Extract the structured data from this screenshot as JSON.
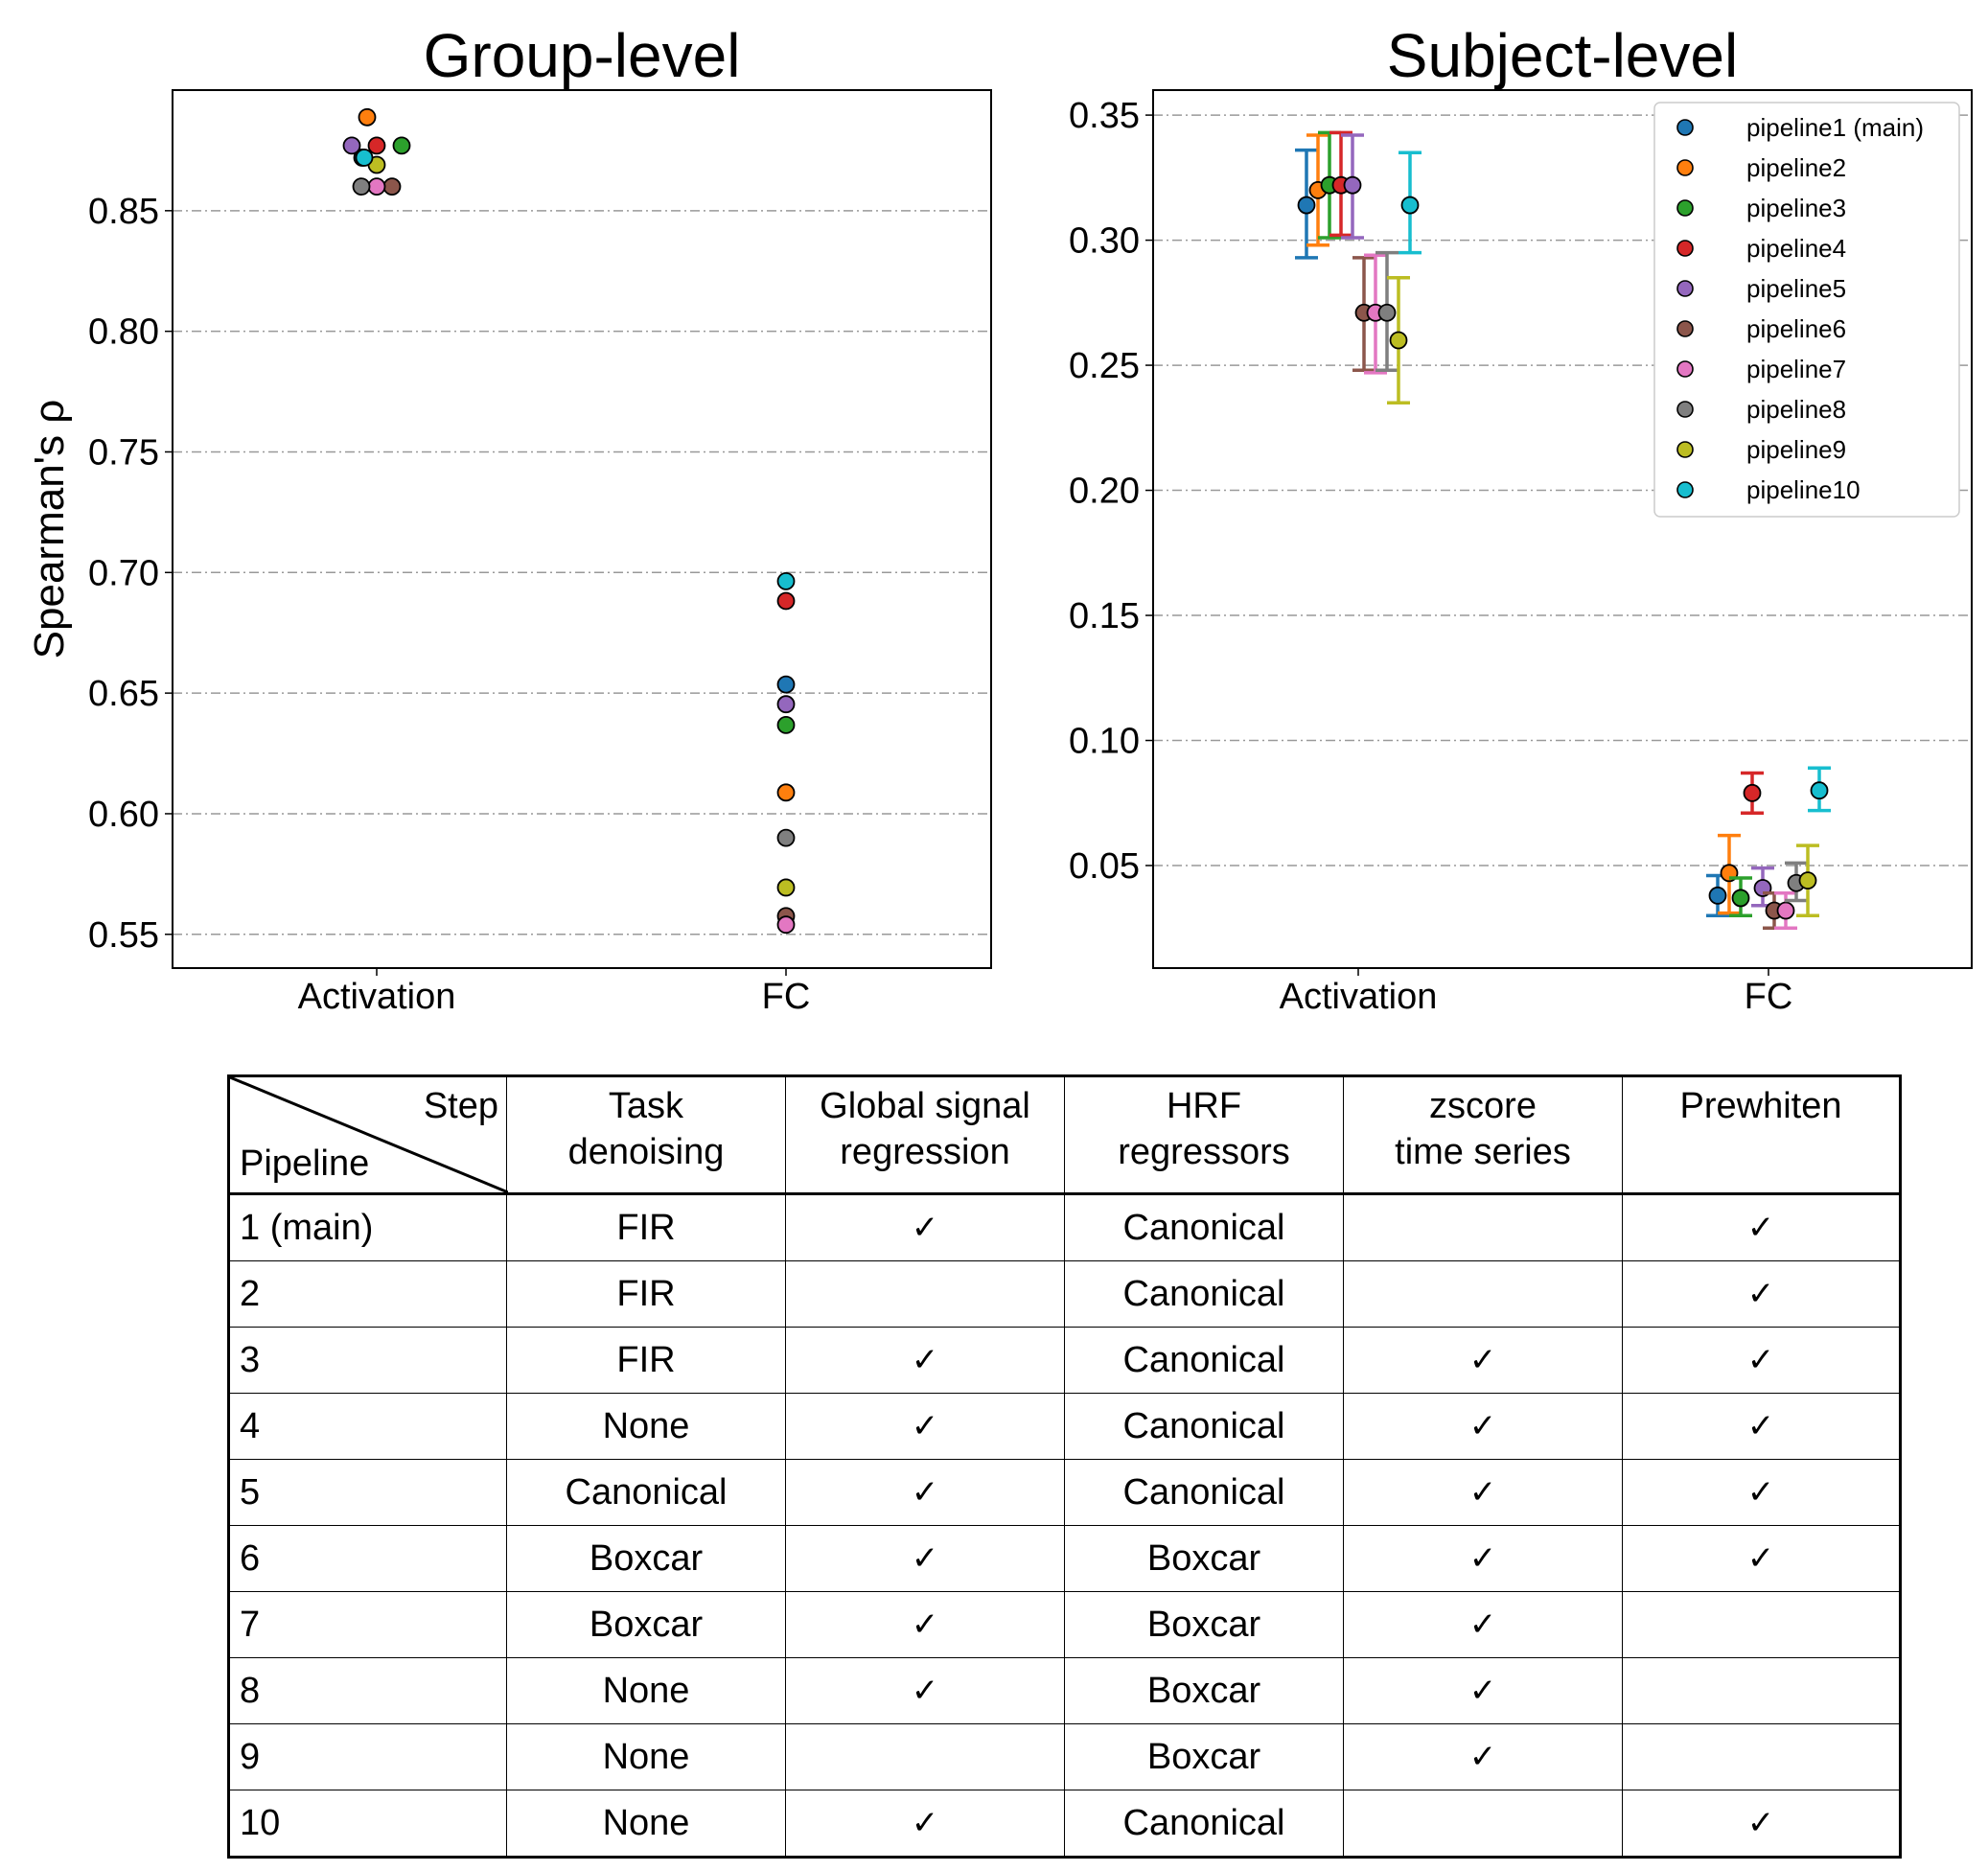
{
  "chart_data": [
    {
      "type": "scatter",
      "title": "Group-level",
      "xlabel": "",
      "ylabel": "Spearman's ρ",
      "categories": [
        "Activation",
        "FC"
      ],
      "ylim": [
        0.536,
        0.9
      ],
      "yticks": [
        "0.55",
        "0.60",
        "0.65",
        "0.70",
        "0.75",
        "0.80",
        "0.85"
      ],
      "grid": "horizontal dash-dot",
      "series": [
        {
          "color": "#1f77b4",
          "values": [
            0.872,
            0.652
          ]
        },
        {
          "color": "#ff7f0e",
          "values": [
            0.882,
            0.608
          ]
        },
        {
          "color": "#2ca02c",
          "values": [
            0.877,
            0.636
          ]
        },
        {
          "color": "#d62728",
          "values": [
            0.877,
            0.687
          ]
        },
        {
          "color": "#9467bd",
          "values": [
            0.877,
            0.645
          ]
        },
        {
          "color": "#8c564b",
          "values": [
            0.86,
            0.552
          ]
        },
        {
          "color": "#e377c2",
          "values": [
            0.86,
            0.554
          ]
        },
        {
          "color": "#7f7f7f",
          "values": [
            0.86,
            0.59
          ]
        },
        {
          "color": "#bcbd22",
          "values": [
            0.869,
            0.569
          ]
        },
        {
          "color": "#17becf",
          "values": [
            0.872,
            0.694
          ]
        }
      ]
    },
    {
      "type": "scatter",
      "title": "Subject-level",
      "xlabel": "",
      "ylabel": "",
      "categories": [
        "Activation",
        "FC"
      ],
      "ylim": [
        0.009,
        0.36
      ],
      "yticks": [
        "0.05",
        "0.10",
        "0.15",
        "0.20",
        "0.25",
        "0.30",
        "0.35"
      ],
      "grid": "horizontal dash-dot",
      "legend_position": "top-right",
      "series": [
        {
          "name": "pipeline1 (main)",
          "color": "#1f77b4",
          "values": [
            0.314,
            0.038
          ],
          "err_low": [
            0.293,
            0.03
          ],
          "err_high": [
            0.336,
            0.046
          ]
        },
        {
          "name": "pipeline2",
          "color": "#ff7f0e",
          "values": [
            0.32,
            0.047
          ],
          "err_low": [
            0.298,
            0.031
          ],
          "err_high": [
            0.342,
            0.062
          ]
        },
        {
          "name": "pipeline3",
          "color": "#2ca02c",
          "values": [
            0.322,
            0.037
          ],
          "err_low": [
            0.301,
            0.03
          ],
          "err_high": [
            0.343,
            0.045
          ]
        },
        {
          "name": "pipeline4",
          "color": "#d62728",
          "values": [
            0.322,
            0.079
          ],
          "err_low": [
            0.302,
            0.071
          ],
          "err_high": [
            0.343,
            0.087
          ]
        },
        {
          "name": "pipeline5",
          "color": "#9467bd",
          "values": [
            0.322,
            0.041
          ],
          "err_low": [
            0.301,
            0.034
          ],
          "err_high": [
            0.342,
            0.049
          ]
        },
        {
          "name": "pipeline6",
          "color": "#8c564b",
          "values": [
            0.271,
            0.032
          ],
          "err_low": [
            0.248,
            0.025
          ],
          "err_high": [
            0.293,
            0.039
          ]
        },
        {
          "name": "pipeline7",
          "color": "#e377c2",
          "values": [
            0.271,
            0.032
          ],
          "err_low": [
            0.247,
            0.025
          ],
          "err_high": [
            0.294,
            0.039
          ]
        },
        {
          "name": "pipeline8",
          "color": "#7f7f7f",
          "values": [
            0.271,
            0.043
          ],
          "err_low": [
            0.248,
            0.036
          ],
          "err_high": [
            0.295,
            0.051
          ]
        },
        {
          "name": "pipeline9",
          "color": "#bcbd22",
          "values": [
            0.26,
            0.044
          ],
          "err_low": [
            0.235,
            0.03
          ],
          "err_high": [
            0.285,
            0.058
          ]
        },
        {
          "name": "pipeline10",
          "color": "#17becf",
          "values": [
            0.314,
            0.08
          ],
          "err_low": [
            0.295,
            0.072
          ],
          "err_high": [
            0.335,
            0.089
          ]
        }
      ]
    }
  ],
  "table": {
    "corner_step": "Step",
    "corner_pipeline": "Pipeline",
    "headers": [
      [
        "Task",
        "denoising"
      ],
      [
        "Global signal",
        "regression"
      ],
      [
        "HRF",
        "regressors"
      ],
      [
        "zscore",
        "time series"
      ],
      [
        "Prewhiten",
        ""
      ]
    ],
    "rows": [
      [
        "1 (main)",
        "FIR",
        "✓",
        "Canonical",
        "",
        "✓"
      ],
      [
        "2",
        "FIR",
        "",
        "Canonical",
        "",
        "✓"
      ],
      [
        "3",
        "FIR",
        "✓",
        "Canonical",
        "✓",
        "✓"
      ],
      [
        "4",
        "None",
        "✓",
        "Canonical",
        "✓",
        "✓"
      ],
      [
        "5",
        "Canonical",
        "✓",
        "Canonical",
        "✓",
        "✓"
      ],
      [
        "6",
        "Boxcar",
        "✓",
        "Boxcar",
        "✓",
        "✓"
      ],
      [
        "7",
        "Boxcar",
        "✓",
        "Boxcar",
        "✓",
        ""
      ],
      [
        "8",
        "None",
        "✓",
        "Boxcar",
        "✓",
        ""
      ],
      [
        "9",
        "None",
        "",
        "Boxcar",
        "✓",
        ""
      ],
      [
        "10",
        "None",
        "✓",
        "Canonical",
        "",
        "✓"
      ]
    ]
  }
}
